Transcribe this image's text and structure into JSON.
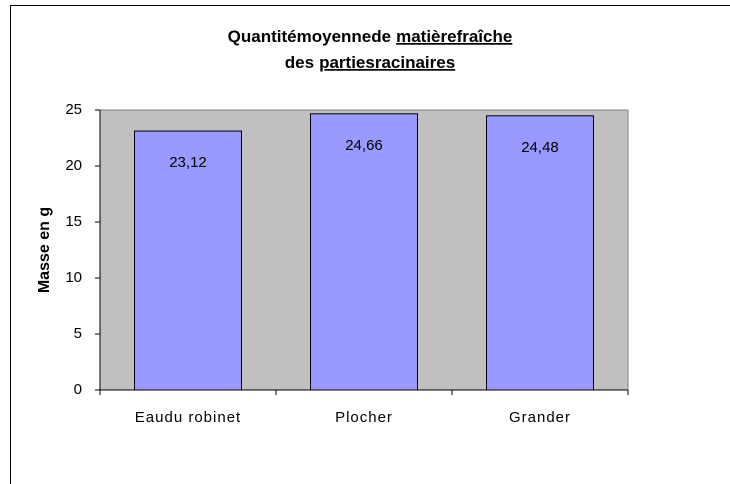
{
  "chart_data": {
    "type": "bar",
    "title_lines": [
      {
        "plain": "Quantitémoyennede",
        "underlined": "matièrefraîche"
      },
      {
        "plain": "des",
        "underlined": "partiesracinaires"
      }
    ],
    "y_label": "Masse en g",
    "categories": [
      "Eaudu robinet",
      "Plocher",
      "Grander"
    ],
    "values": [
      23.12,
      24.66,
      24.48
    ],
    "value_labels": [
      "23,12",
      "24,66",
      "24,48"
    ],
    "color": "#9999ff",
    "plot_background": "#c0c0c0",
    "ylim": [
      0,
      25
    ],
    "yticks": [
      0,
      5,
      10,
      15,
      20,
      25
    ],
    "grid": false
  }
}
